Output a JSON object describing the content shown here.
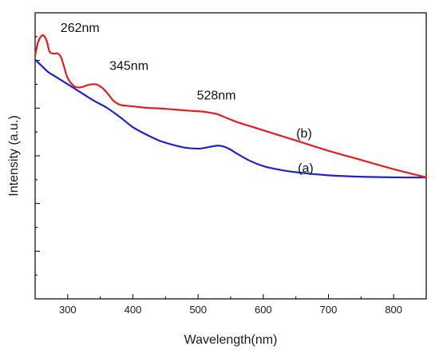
{
  "chart_data": {
    "type": "line",
    "title": "",
    "xlabel": "Wavelength(nm)",
    "ylabel": "Intensity (a.u.)",
    "xlim": [
      250,
      850
    ],
    "ylim": [
      0,
      1
    ],
    "xticks": [
      300,
      400,
      500,
      600,
      700,
      800
    ],
    "y_tick_labels_shown": false,
    "y_minor_ticks": 12,
    "grid": false,
    "legend": "none",
    "series": [
      {
        "name": "(a)",
        "color": "#1f22c8",
        "x": [
          250,
          260,
          270,
          280,
          290,
          300,
          320,
          340,
          360,
          380,
          400,
          420,
          440,
          460,
          480,
          500,
          510,
          520,
          530,
          540,
          550,
          560,
          580,
          600,
          620,
          650,
          700,
          750,
          800,
          850
        ],
        "y": [
          0.88,
          0.85,
          0.82,
          0.8,
          0.78,
          0.76,
          0.72,
          0.68,
          0.645,
          0.6,
          0.55,
          0.515,
          0.485,
          0.465,
          0.45,
          0.445,
          0.449,
          0.455,
          0.46,
          0.455,
          0.44,
          0.42,
          0.385,
          0.36,
          0.345,
          0.33,
          0.315,
          0.308,
          0.305,
          0.304
        ]
      },
      {
        "name": "(b)",
        "color": "#e02020",
        "x": [
          250,
          255,
          262,
          268,
          272,
          278,
          285,
          290,
          295,
          300,
          310,
          320,
          330,
          338,
          345,
          352,
          360,
          370,
          380,
          390,
          400,
          420,
          450,
          480,
          500,
          510,
          528,
          540,
          560,
          580,
          600,
          650,
          700,
          750,
          800,
          850
        ],
        "y": [
          0.9,
          0.97,
          1.0,
          0.97,
          0.92,
          0.91,
          0.91,
          0.89,
          0.84,
          0.79,
          0.75,
          0.745,
          0.755,
          0.76,
          0.758,
          0.745,
          0.72,
          0.68,
          0.66,
          0.655,
          0.652,
          0.645,
          0.64,
          0.632,
          0.628,
          0.625,
          0.615,
          0.6,
          0.575,
          0.555,
          0.535,
          0.485,
          0.435,
          0.39,
          0.345,
          0.305
        ]
      }
    ],
    "annotations": [
      {
        "text": "262nm",
        "x": 262,
        "y": 1.0
      },
      {
        "text": "345nm",
        "x": 345,
        "y": 0.76
      },
      {
        "text": "528nm",
        "x": 528,
        "y": 0.615
      },
      {
        "text": "(b)",
        "x": 670,
        "y": 0.5
      },
      {
        "text": "(a)",
        "x": 665,
        "y": 0.33
      }
    ]
  }
}
